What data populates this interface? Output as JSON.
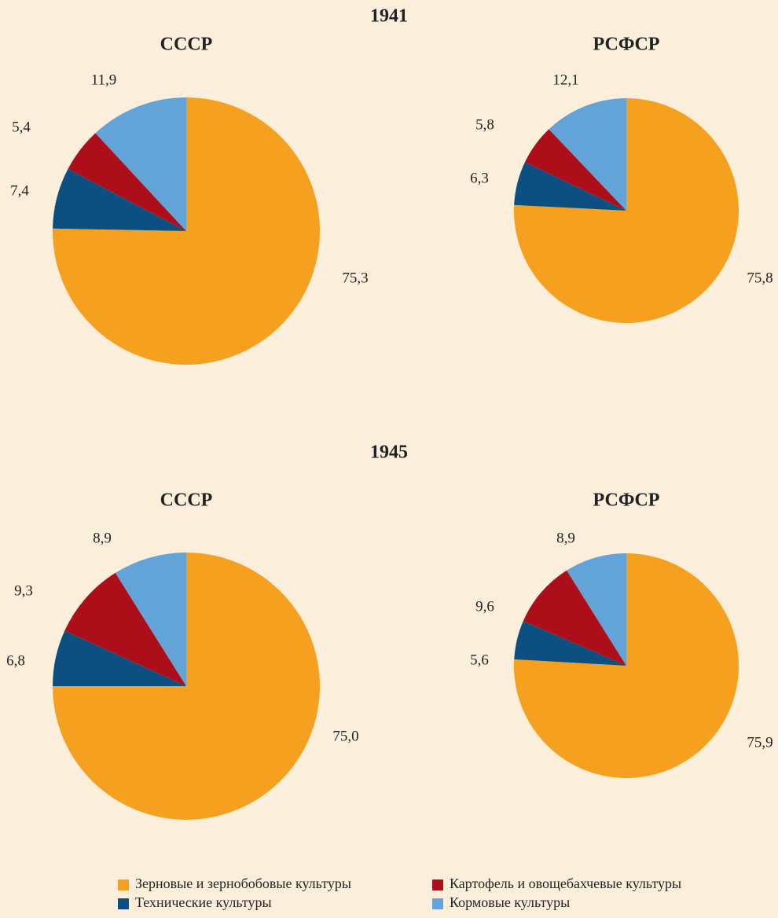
{
  "sections": [
    "1941",
    "1945"
  ],
  "chart_data": [
    {
      "type": "pie",
      "title": "СССР",
      "categories": [
        "Зерновые и зернобобовые культуры",
        "Технические культуры",
        "Картофель и овощебахчевые культуры",
        "Кормовые культуры"
      ],
      "values": [
        75.3,
        7.4,
        5.4,
        11.9
      ],
      "value_labels": [
        "75,3",
        "7,4",
        "5,4",
        "11,9"
      ],
      "colors": [
        "#f5a01f",
        "#0b5080",
        "#ad0f1a",
        "#62a3d8"
      ]
    },
    {
      "type": "pie",
      "title": "РСФСР",
      "categories": [
        "Зерновые и зернобобовые культуры",
        "Технические культуры",
        "Картофель и овощебахчевые культуры",
        "Кормовые культуры"
      ],
      "values": [
        75.8,
        6.3,
        5.8,
        12.1
      ],
      "value_labels": [
        "75,8",
        "6,3",
        "5,8",
        "12,1"
      ],
      "colors": [
        "#f5a01f",
        "#0b5080",
        "#ad0f1a",
        "#62a3d8"
      ]
    },
    {
      "type": "pie",
      "title": "СССР",
      "categories": [
        "Зерновые и зернобобовые культуры",
        "Технические культуры",
        "Картофель и овощебахчевые культуры",
        "Кормовые культуры"
      ],
      "values": [
        75.0,
        6.8,
        9.3,
        8.9
      ],
      "value_labels": [
        "75,0",
        "6,8",
        "9,3",
        "8,9"
      ],
      "colors": [
        "#f5a01f",
        "#0b5080",
        "#ad0f1a",
        "#62a3d8"
      ]
    },
    {
      "type": "pie",
      "title": "РСФСР",
      "categories": [
        "Зерновые и зернобобовые культуры",
        "Технические культуры",
        "Картофель и овощебахчевые культуры",
        "Кормовые культуры"
      ],
      "values": [
        75.9,
        5.6,
        9.6,
        8.9
      ],
      "value_labels": [
        "75,9",
        "5,6",
        "9,6",
        "8,9"
      ],
      "colors": [
        "#f5a01f",
        "#0b5080",
        "#ad0f1a",
        "#62a3d8"
      ]
    }
  ]
}
